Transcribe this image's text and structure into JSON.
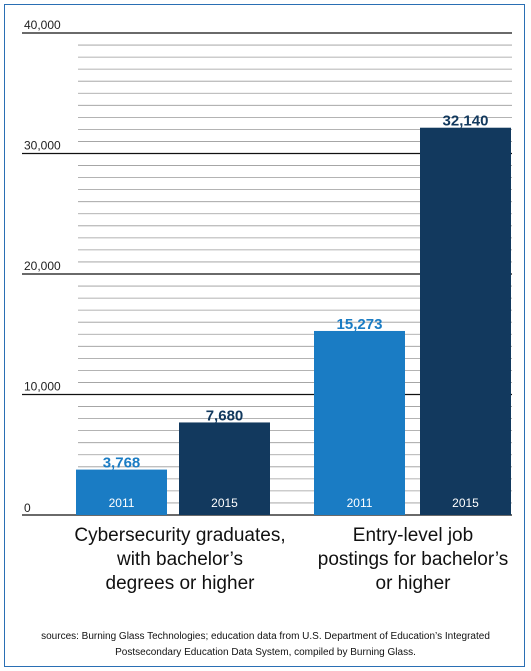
{
  "chart_data": {
    "type": "bar",
    "title": "",
    "xlabel": "",
    "ylabel": "",
    "ylim": [
      0,
      40000
    ],
    "y_ticks": [
      0,
      10000,
      20000,
      30000,
      40000
    ],
    "y_tick_labels": [
      "0",
      "10,000",
      "20,000",
      "30,000",
      "40,000"
    ],
    "grid": true,
    "groups": [
      {
        "label": "Cybersecurity graduates,\nwith bachelor’s\ndegrees or higher",
        "bars": [
          {
            "year": "2011",
            "value": 3768,
            "value_label": "3,768",
            "color": "#1a7cc4"
          },
          {
            "year": "2015",
            "value": 7680,
            "value_label": "7,680",
            "color": "#12395e"
          }
        ]
      },
      {
        "label": "Entry-level job\npostings for bachelor’s\nor higher",
        "bars": [
          {
            "year": "2011",
            "value": 15273,
            "value_label": "15,273",
            "color": "#1a7cc4"
          },
          {
            "year": "2015",
            "value": 32140,
            "value_label": "32,140",
            "color": "#12395e"
          }
        ]
      }
    ]
  },
  "sources_text": "sources: Burning Glass Technologies; education data from U.S. Department of Education’s Integrated Postsecondary Education Data System, compiled by Burning Glass.",
  "colors": {
    "frame": "#2a6fb4",
    "bar_2011": "#1a7cc4",
    "bar_2015": "#12395e"
  }
}
